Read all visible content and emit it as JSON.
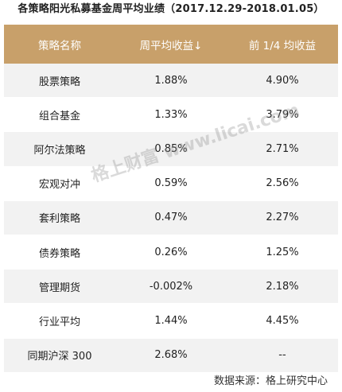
{
  "title": "各策略阳光私募基金周平均业绩（2017.12.29-2018.01.05）",
  "header": {
    "col1": "策略名称",
    "col2": "周平均收益↓",
    "col3": "前 1/4 均收益"
  },
  "rows": [
    {
      "name": "股票策略",
      "weekly": "1.88%",
      "top_quarter": "4.90%"
    },
    {
      "name": "组合基金",
      "weekly": "1.33%",
      "top_quarter": "3.79%"
    },
    {
      "name": "阿尔法策略",
      "weekly": "0.85%",
      "top_quarter": "2.71%"
    },
    {
      "name": "宏观对冲",
      "weekly": "0.59%",
      "top_quarter": "2.56%"
    },
    {
      "name": "套利策略",
      "weekly": "0.47%",
      "top_quarter": "2.27%"
    },
    {
      "name": "债券策略",
      "weekly": "0.26%",
      "top_quarter": "1.25%"
    },
    {
      "name": "管理期货",
      "weekly": "-0.002%",
      "top_quarter": "2.18%"
    },
    {
      "name": "行业平均",
      "weekly": "1.44%",
      "top_quarter": "4.45%"
    },
    {
      "name": "同期沪深 300",
      "weekly": "2.68%",
      "top_quarter": "--"
    }
  ],
  "watermark": "格上财富 www.licai.com",
  "source": "数据来源：格上研究中心",
  "colors": {
    "header_bg": "#c8a06a",
    "stripe_bg": "#f2f2f2"
  }
}
